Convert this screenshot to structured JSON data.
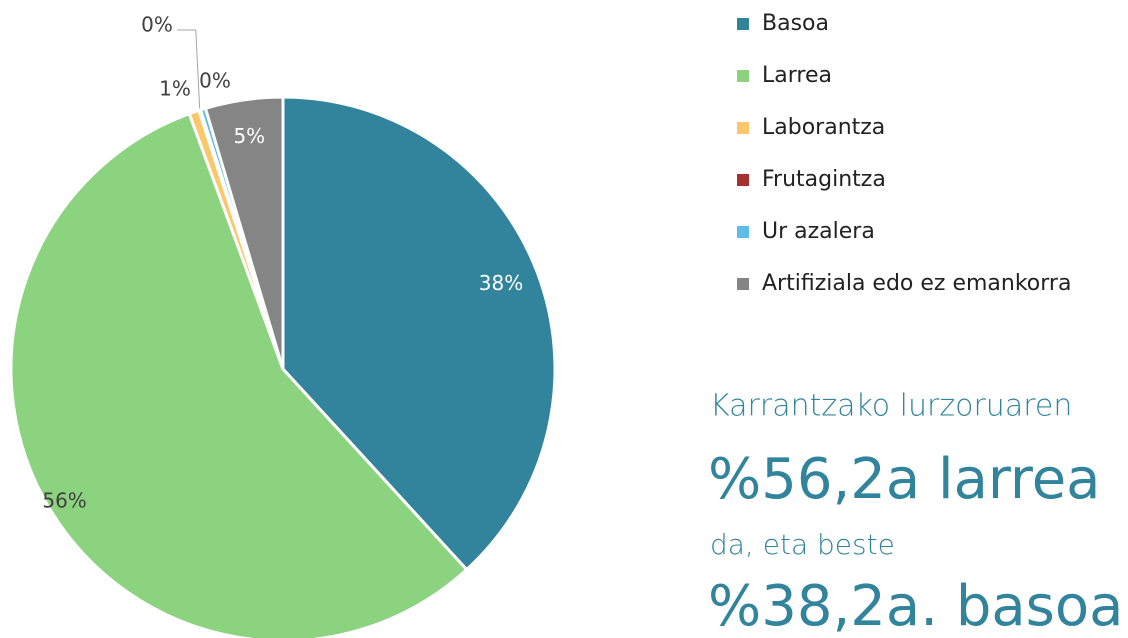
{
  "chart_data": {
    "type": "pie",
    "categories": [
      "Basoa",
      "Larrea",
      "Laborantza",
      "Frutagintza",
      "Ur azalera",
      "Artifiziala edo ez emankorra"
    ],
    "values": [
      38.2,
      56.2,
      0.6,
      0.1,
      0.3,
      4.6
    ],
    "value_labels": [
      "38%",
      "56%",
      "1%",
      "0%",
      "0%",
      "5%"
    ],
    "colors": [
      "#31849b",
      "#8bd37f",
      "#fcc66b",
      "#a4302f",
      "#5cbde8",
      "#858585"
    ],
    "legend": "right",
    "annotations": [
      "Karrantzako lurzoruaren",
      "%56,2a larrea",
      "da, eta beste",
      "%38,2a. basoa"
    ]
  }
}
